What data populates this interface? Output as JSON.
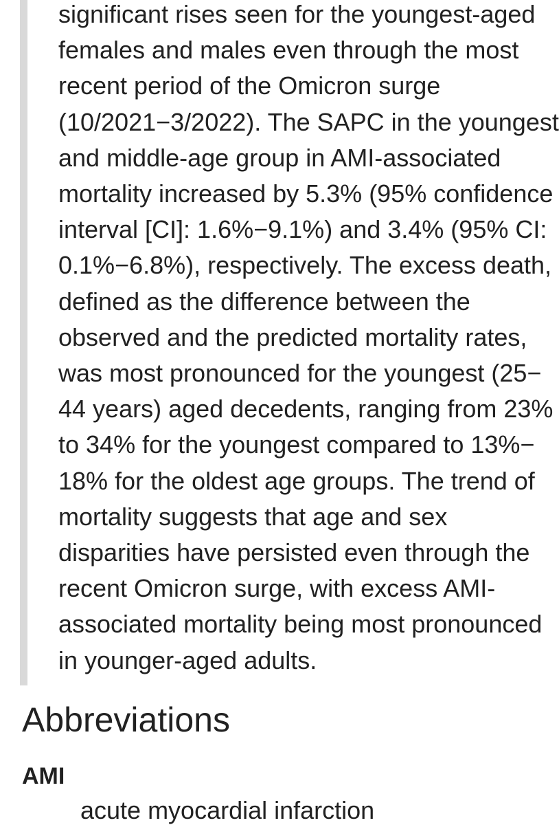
{
  "page": {
    "background_color": "#ffffff",
    "text_color": "#212121",
    "quote_bar_color": "#d9d9d9"
  },
  "abstract_quote": {
    "paragraph": "significant rises seen for the youngest-aged\nfemales and males even through the most\nrecent period of the Omicron surge\n(10/2021−3/2022). The SAPC in the youngest\nand middle-age group in AMI-associated\nmortality increased by 5.3% (95% confidence\ninterval [CI]: 1.6%−9.1%) and 3.4% (95% CI:\n0.1%−6.8%), respectively. The excess death,\ndefined as the difference between the\nobserved and the predicted mortality rates,\nwas most pronounced for the youngest (25−\n44 years) aged decedents, ranging from 23%\nto 34% for the youngest compared to 13%−\n18% for the oldest age groups. The trend of\nmortality suggests that age and sex\ndisparities have persisted even through the\nrecent Omicron surge, with excess AMI-\nassociated mortality being most pronounced\nin younger-aged adults."
  },
  "abbreviations": {
    "heading": "Abbreviations",
    "items": [
      {
        "term": "AMI",
        "definition": "acute myocardial infarction"
      }
    ]
  }
}
